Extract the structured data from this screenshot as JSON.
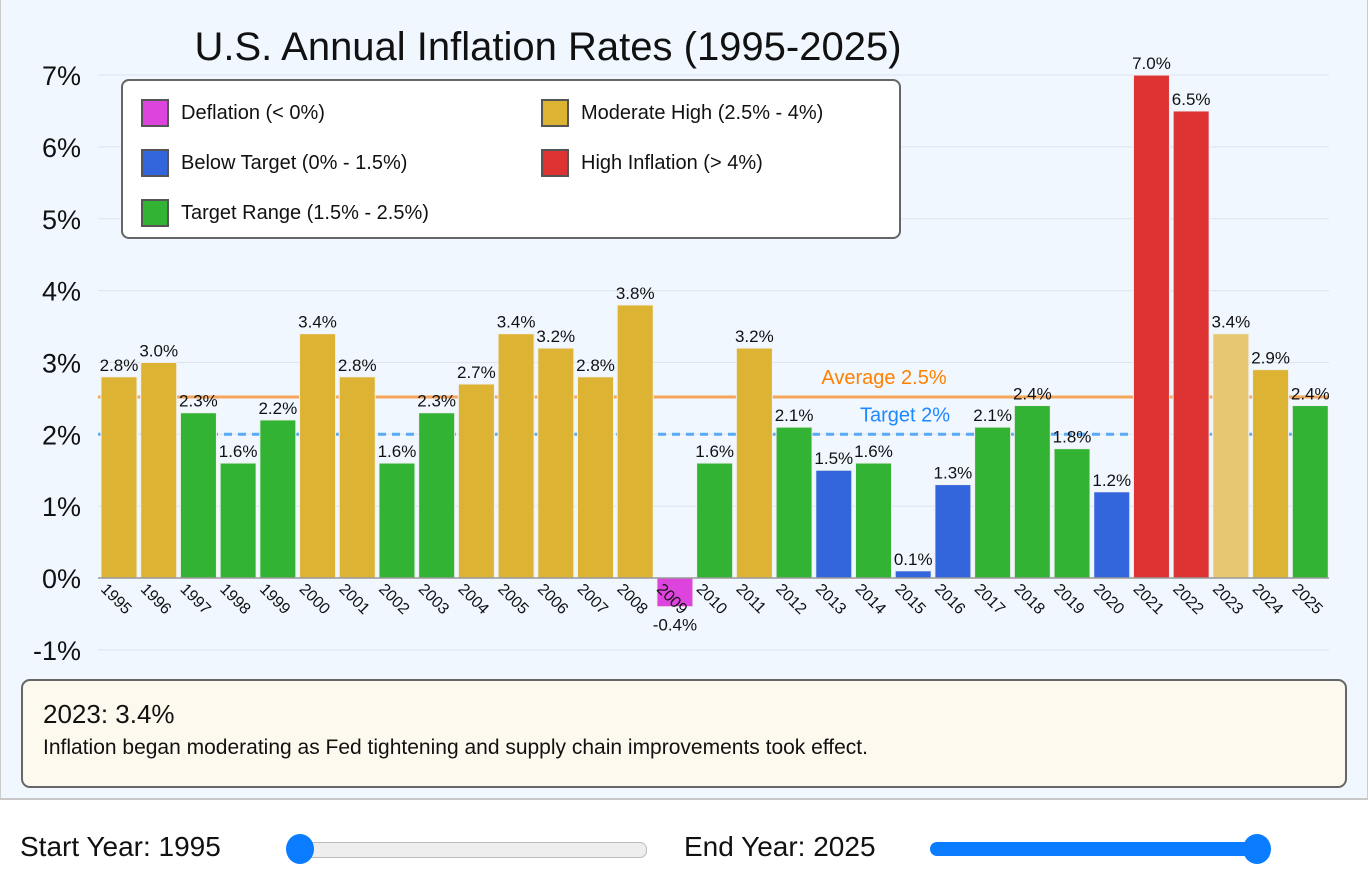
{
  "chart_data": {
    "type": "bar",
    "title": "U.S. Annual Inflation Rates (1995-2025)",
    "categories": [
      "1995",
      "1996",
      "1997",
      "1998",
      "1999",
      "2000",
      "2001",
      "2002",
      "2003",
      "2004",
      "2005",
      "2006",
      "2007",
      "2008",
      "2009",
      "2010",
      "2011",
      "2012",
      "2013",
      "2014",
      "2015",
      "2016",
      "2017",
      "2018",
      "2019",
      "2020",
      "2021",
      "2022",
      "2023",
      "2024",
      "2025"
    ],
    "values": [
      2.8,
      3.0,
      2.3,
      1.6,
      2.2,
      3.4,
      2.8,
      1.6,
      2.3,
      2.7,
      3.4,
      3.2,
      2.8,
      3.8,
      -0.4,
      1.6,
      3.2,
      2.1,
      1.5,
      1.6,
      0.1,
      1.3,
      2.1,
      2.4,
      1.8,
      1.2,
      7.0,
      6.5,
      3.4,
      2.9,
      2.4
    ],
    "data_labels": [
      "2.8%",
      "3.0%",
      "2.3%",
      "1.6%",
      "2.2%",
      "3.4%",
      "2.8%",
      "1.6%",
      "2.3%",
      "2.7%",
      "3.4%",
      "3.2%",
      "2.8%",
      "3.8%",
      "-0.4%",
      "1.6%",
      "3.2%",
      "2.1%",
      "1.5%",
      "1.6%",
      "0.1%",
      "1.3%",
      "2.1%",
      "2.4%",
      "1.8%",
      "1.2%",
      "7.0%",
      "6.5%",
      "3.4%",
      "2.9%",
      "2.4%"
    ],
    "ylim": [
      -1,
      7
    ],
    "yticks": [
      "-1%",
      "0%",
      "1%",
      "2%",
      "3%",
      "4%",
      "5%",
      "6%",
      "7%"
    ],
    "grid": true,
    "highlighted": "2023",
    "reference_lines": [
      {
        "label": "Average 2.5%",
        "value": 2.52,
        "color": "#f5a65b",
        "label_color": "#ff8000",
        "style": "solid"
      },
      {
        "label": "Target 2%",
        "value": 2.0,
        "color": "#5aaaf5",
        "label_color": "#1e88ff",
        "style": "dashed"
      }
    ],
    "legend": {
      "placement": "top-left",
      "items": [
        {
          "label": "Deflation (< 0%)",
          "color": "#dd44dd"
        },
        {
          "label": "Moderate High (2.5% - 4%)",
          "color": "#ddb333"
        },
        {
          "label": "Below Target (0% - 1.5%)",
          "color": "#3366dd"
        },
        {
          "label": "High Inflation (> 4%)",
          "color": "#dd3333"
        },
        {
          "label": "Target Range (1.5% - 2.5%)",
          "color": "#33b333"
        }
      ]
    },
    "highlight_color": "#e6c872"
  },
  "info": {
    "title": "2023: 3.4%",
    "description": "Inflation began moderating as Fed tightening and supply chain improvements took effect."
  },
  "controls": {
    "start_label": "Start Year: 1995",
    "start_value": 1995,
    "end_label": "End Year: 2025",
    "end_value": 2025,
    "min_year": 1995,
    "max_year": 2025,
    "accent": "#0a7cff"
  }
}
